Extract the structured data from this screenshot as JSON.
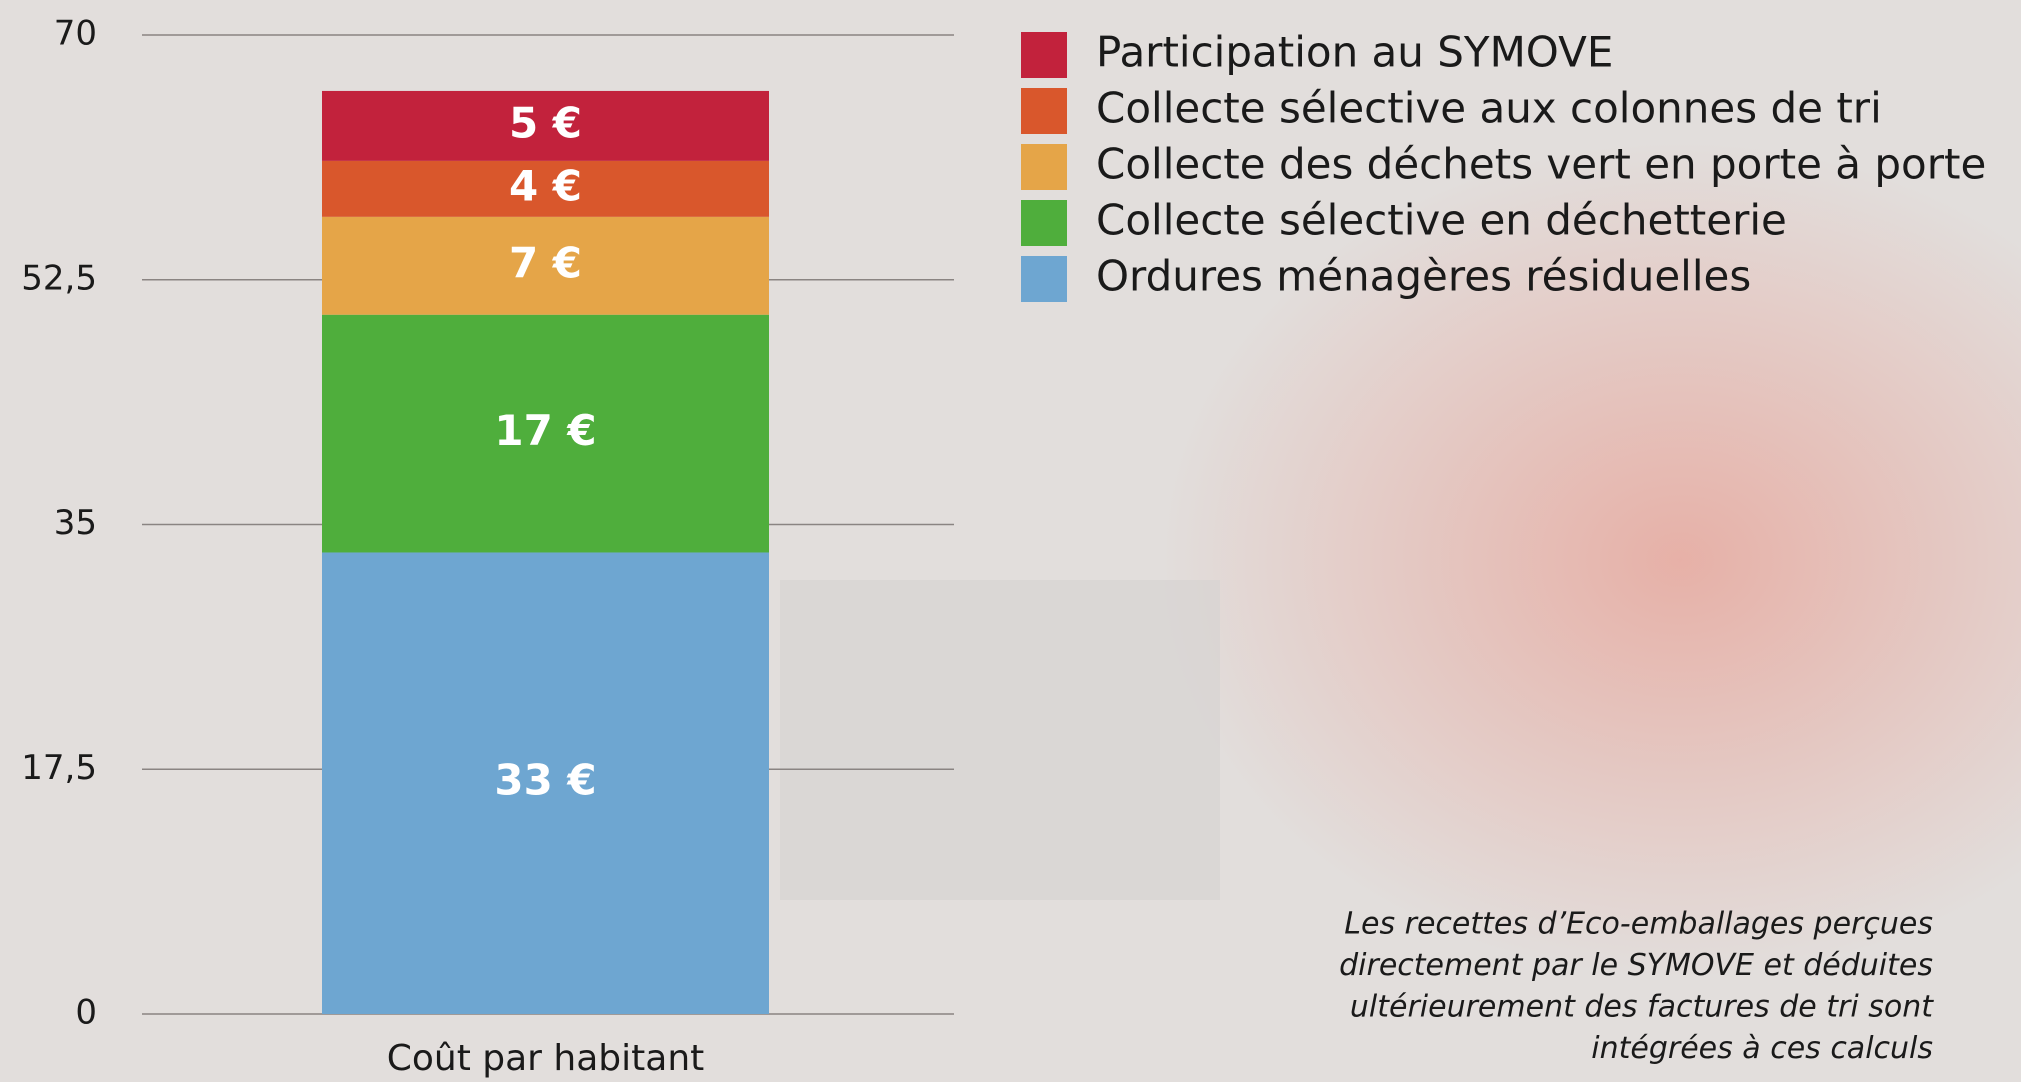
{
  "chart_data": {
    "type": "stacked_bar",
    "categories": [
      "Coût par habitant"
    ],
    "series": [
      {
        "name": "Ordures ménagères résiduelles",
        "color": "#6ea6d1",
        "values": [
          33
        ],
        "value_labels": [
          "33 €"
        ]
      },
      {
        "name": "Collecte sélective en déchetterie",
        "color": "#4fae3c",
        "values": [
          17
        ],
        "value_labels": [
          "17 €"
        ]
      },
      {
        "name": "Collecte des déchets vert en porte à porte",
        "color": "#e5a548",
        "values": [
          7
        ],
        "value_labels": [
          "7 €"
        ]
      },
      {
        "name": "Collecte sélective aux colonnes de tri",
        "color": "#d9572c",
        "values": [
          4
        ],
        "value_labels": [
          "4 €"
        ]
      },
      {
        "name": "Participation au SYMOVE",
        "color": "#c2223c",
        "values": [
          5
        ],
        "value_labels": [
          "5 €"
        ]
      }
    ],
    "ylim": [
      0,
      70
    ],
    "yticks": [
      0,
      {
        "value": 17.5,
        "label": "17,5"
      },
      35,
      {
        "value": 52.5,
        "label": "52,5"
      },
      70
    ],
    "grid": true,
    "legend": "top-right",
    "annotation": [
      "Les recettes d’Eco-emballages perçues",
      "directement par le SYMOVE et déduites",
      "ultérieurement des factures de tri sont",
      "intégrées à ces calculs"
    ]
  }
}
